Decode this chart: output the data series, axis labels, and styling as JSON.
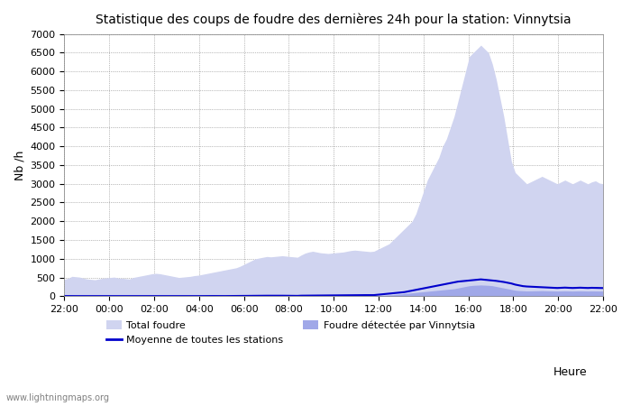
{
  "title": "Statistique des coups de foudre des dernières 24h pour la station: Vinnytsia",
  "xlabel": "Heure",
  "ylabel": "Nb /h",
  "watermark": "www.lightningmaps.org",
  "ylim": [
    0,
    7000
  ],
  "yticks": [
    0,
    500,
    1000,
    1500,
    2000,
    2500,
    3000,
    3500,
    4000,
    4500,
    5000,
    5500,
    6000,
    6500,
    7000
  ],
  "xtick_labels": [
    "22:00",
    "00:00",
    "02:00",
    "04:00",
    "06:00",
    "08:00",
    "10:00",
    "12:00",
    "14:00",
    "16:00",
    "18:00",
    "20:00",
    "22:00"
  ],
  "color_total": "#d0d4f0",
  "color_detected": "#a0a8e8",
  "color_mean": "#0000cc",
  "background_color": "#ffffff",
  "total_foudre": [
    450,
    480,
    530,
    520,
    510,
    480,
    460,
    450,
    440,
    460,
    480,
    490,
    500,
    510,
    490,
    480,
    470,
    460,
    500,
    520,
    540,
    560,
    580,
    600,
    610,
    600,
    580,
    560,
    540,
    520,
    500,
    510,
    520,
    530,
    550,
    560,
    580,
    600,
    620,
    640,
    660,
    680,
    700,
    720,
    740,
    760,
    800,
    850,
    900,
    950,
    1000,
    1020,
    1040,
    1060,
    1050,
    1060,
    1070,
    1080,
    1070,
    1060,
    1050,
    1040,
    1100,
    1150,
    1180,
    1200,
    1180,
    1160,
    1150,
    1140,
    1150,
    1160,
    1170,
    1180,
    1200,
    1220,
    1230,
    1220,
    1210,
    1200,
    1190,
    1200,
    1250,
    1300,
    1350,
    1400,
    1500,
    1600,
    1700,
    1800,
    1900,
    2000,
    2200,
    2500,
    2800,
    3100,
    3300,
    3500,
    3700,
    4000,
    4200,
    4500,
    4800,
    5200,
    5600,
    6000,
    6400,
    6500,
    6600,
    6700,
    6600,
    6500,
    6200,
    5800,
    5300,
    4800,
    4200,
    3600,
    3300,
    3200,
    3100,
    3000,
    3050,
    3100,
    3150,
    3200,
    3150,
    3100,
    3050,
    3000,
    3050,
    3100,
    3050,
    3000,
    3050,
    3100,
    3050,
    3000,
    3050,
    3080,
    3020,
    3000
  ],
  "foudre_detected": [
    10,
    12,
    8,
    9,
    10,
    11,
    8,
    9,
    10,
    8,
    7,
    8,
    9,
    10,
    8,
    7,
    6,
    8,
    9,
    10,
    8,
    9,
    10,
    11,
    12,
    10,
    9,
    8,
    7,
    8,
    9,
    10,
    8,
    7,
    8,
    9,
    10,
    11,
    12,
    10,
    9,
    8,
    7,
    8,
    9,
    10,
    11,
    12,
    13,
    14,
    15,
    14,
    13,
    12,
    13,
    14,
    15,
    14,
    13,
    12,
    11,
    10,
    15,
    16,
    17,
    18,
    17,
    16,
    15,
    14,
    15,
    16,
    17,
    18,
    19,
    20,
    19,
    18,
    17,
    16,
    15,
    16,
    20,
    25,
    30,
    35,
    40,
    50,
    60,
    70,
    80,
    90,
    100,
    110,
    120,
    130,
    140,
    150,
    160,
    170,
    180,
    190,
    200,
    220,
    240,
    260,
    280,
    290,
    295,
    300,
    295,
    290,
    280,
    260,
    240,
    220,
    200,
    180,
    160,
    150,
    145,
    140,
    142,
    144,
    146,
    148,
    145,
    142,
    140,
    138,
    140,
    142,
    140,
    138,
    140,
    142,
    140,
    138,
    140,
    139,
    138,
    137
  ],
  "mean_stations": [
    5,
    4,
    3,
    4,
    5,
    4,
    3,
    4,
    5,
    4,
    3,
    4,
    5,
    4,
    3,
    4,
    5,
    4,
    3,
    4,
    5,
    4,
    3,
    4,
    5,
    4,
    3,
    4,
    5,
    4,
    3,
    4,
    5,
    4,
    3,
    4,
    5,
    4,
    5,
    6,
    5,
    4,
    5,
    6,
    7,
    8,
    9,
    10,
    11,
    12,
    13,
    14,
    15,
    14,
    13,
    14,
    15,
    14,
    13,
    12,
    11,
    10,
    15,
    16,
    17,
    18,
    19,
    20,
    21,
    22,
    23,
    24,
    25,
    26,
    27,
    28,
    29,
    30,
    31,
    30,
    29,
    30,
    40,
    50,
    60,
    70,
    80,
    90,
    100,
    110,
    130,
    150,
    170,
    190,
    210,
    230,
    250,
    270,
    290,
    310,
    330,
    350,
    370,
    390,
    400,
    410,
    420,
    430,
    440,
    450,
    440,
    430,
    420,
    410,
    395,
    380,
    360,
    340,
    310,
    290,
    270,
    260,
    255,
    250,
    245,
    240,
    235,
    230,
    225,
    220,
    225,
    230,
    225,
    220,
    225,
    228,
    225,
    220,
    225,
    222,
    220,
    218
  ]
}
